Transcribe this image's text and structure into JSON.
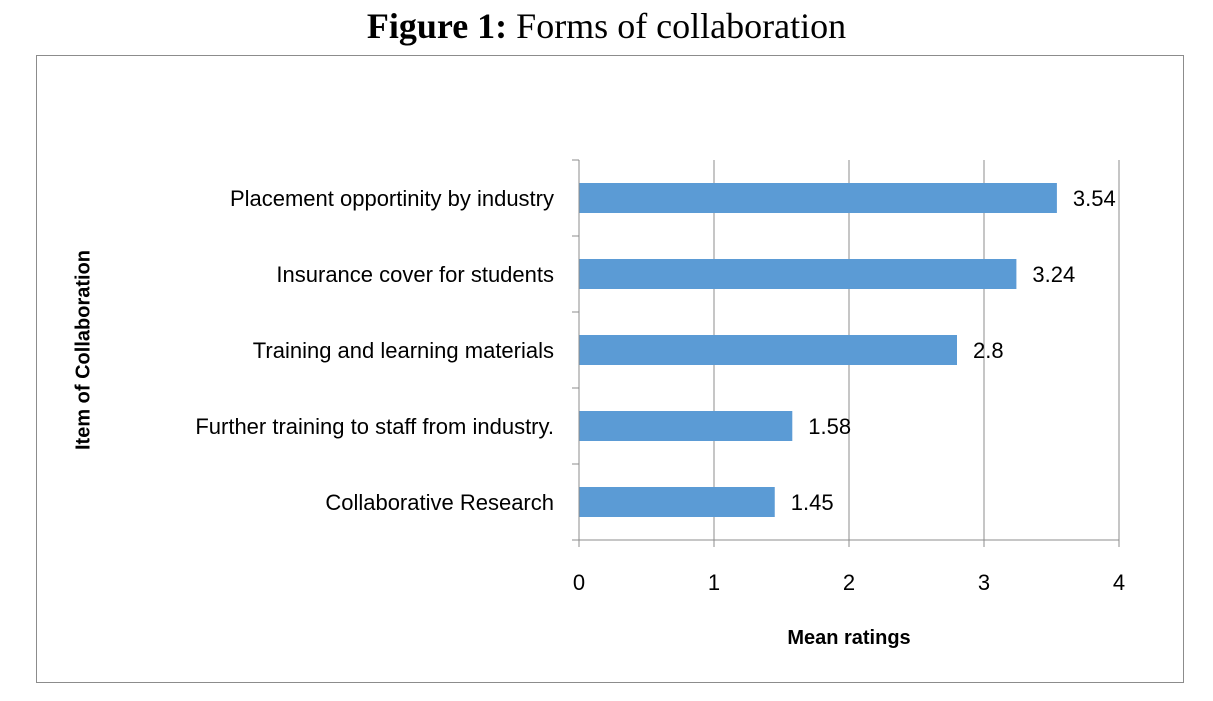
{
  "figure": {
    "label": "Figure 1:",
    "caption": "Forms of collaboration"
  },
  "chart_data": {
    "type": "bar",
    "orientation": "horizontal",
    "categories": [
      "Placement opportinity by industry",
      "Insurance cover for students",
      "Training and learning materials",
      "Further training to staff from industry.",
      "Collaborative Research"
    ],
    "values": [
      3.54,
      3.24,
      2.8,
      1.58,
      1.45
    ],
    "data_labels": [
      "3.54",
      "3.24",
      "2.8",
      "1.58",
      "1.45"
    ],
    "xlabel": "Mean ratings",
    "ylabel": "Item of Collaboration",
    "xlim": [
      0,
      4
    ],
    "xticks": [
      "0",
      "1",
      "2",
      "3",
      "4"
    ],
    "grid": "vertical major gridlines",
    "legend": "none",
    "bar_color": "#5b9bd5"
  }
}
